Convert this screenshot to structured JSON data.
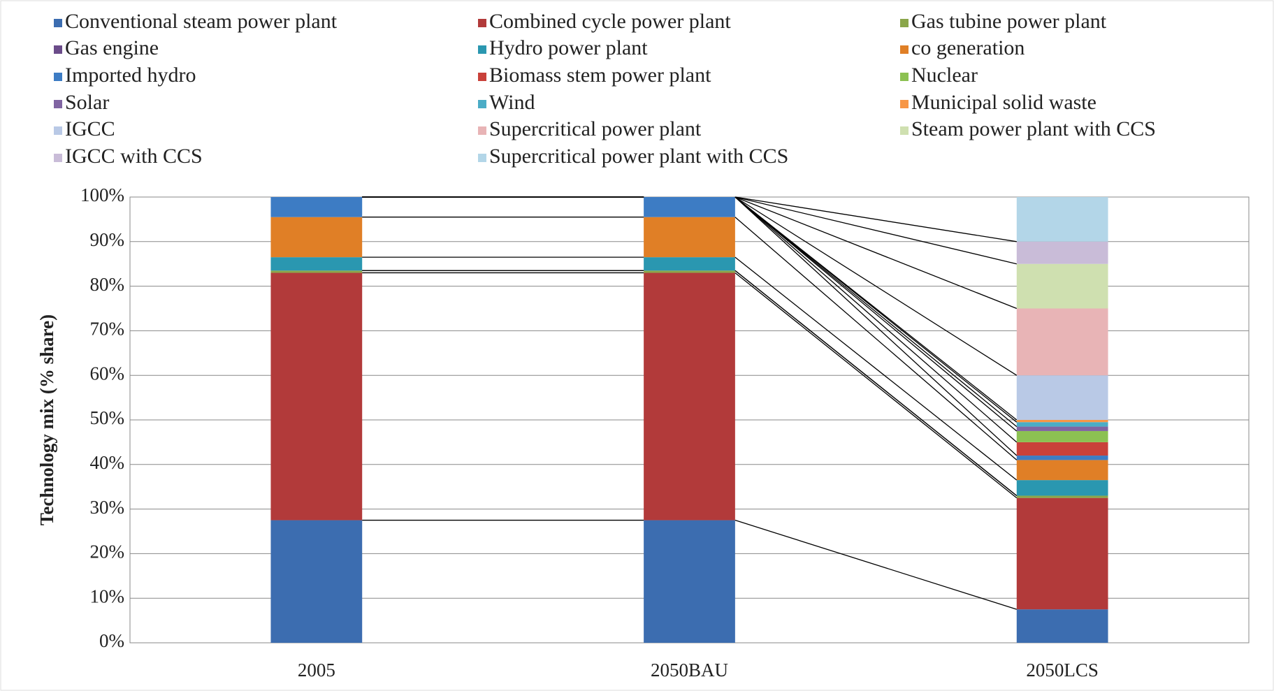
{
  "chart_data": {
    "type": "stacked_bar",
    "ylabel": "Technology mix (% share)",
    "categories": [
      "2005",
      "2050BAU",
      "2050LCS"
    ],
    "ylim": [
      0,
      100
    ],
    "yticks": [
      {
        "value": 0,
        "label": "0%"
      },
      {
        "value": 10,
        "label": "10%"
      },
      {
        "value": 20,
        "label": "20%"
      },
      {
        "value": 30,
        "label": "30%"
      },
      {
        "value": 40,
        "label": "40%"
      },
      {
        "value": 50,
        "label": "50%"
      },
      {
        "value": 60,
        "label": "60%"
      },
      {
        "value": 70,
        "label": "70%"
      },
      {
        "value": 80,
        "label": "80%"
      },
      {
        "value": 90,
        "label": "90%"
      },
      {
        "value": 100,
        "label": "100%"
      }
    ],
    "grid": true,
    "series_lines": true,
    "series": [
      {
        "name": "Conventional steam power plant",
        "color": "#3c6db0",
        "values": [
          27.5,
          27.5,
          7.5
        ]
      },
      {
        "name": "Combined cycle power plant",
        "color": "#b23a3a",
        "values": [
          55.5,
          55.5,
          25
        ]
      },
      {
        "name": "Gas tubine power plant",
        "color": "#8aa64a",
        "values": [
          0.5,
          0.5,
          0.5
        ]
      },
      {
        "name": "Gas engine",
        "color": "#6b4c8a",
        "values": [
          0,
          0,
          0
        ]
      },
      {
        "name": "Hydro power plant",
        "color": "#2a97b0",
        "values": [
          3,
          3,
          3.5
        ]
      },
      {
        "name": "co generation",
        "color": "#e07f26",
        "values": [
          9,
          9,
          4.5
        ]
      },
      {
        "name": "Imported hydro",
        "color": "#3d7cc4",
        "values": [
          4.5,
          4.5,
          1
        ]
      },
      {
        "name": "Biomass stem power plant",
        "color": "#c9413a",
        "values": [
          0,
          0,
          3
        ]
      },
      {
        "name": "Nuclear",
        "color": "#8cc152",
        "values": [
          0,
          0,
          2.5
        ]
      },
      {
        "name": "Solar",
        "color": "#8064a2",
        "values": [
          0,
          0,
          1
        ]
      },
      {
        "name": "Wind",
        "color": "#4bacc6",
        "values": [
          0,
          0,
          1
        ]
      },
      {
        "name": "Municipal solid waste",
        "color": "#f79646",
        "values": [
          0,
          0,
          0.5
        ]
      },
      {
        "name": "IGCC",
        "color": "#b9c9e6",
        "values": [
          0,
          0,
          10
        ]
      },
      {
        "name": "Supercritical power plant",
        "color": "#e8b4b6",
        "values": [
          0,
          0,
          15
        ]
      },
      {
        "name": "Steam power plant with CCS",
        "color": "#cfe0b0",
        "values": [
          0,
          0,
          10
        ]
      },
      {
        "name": "IGCC with CCS",
        "color": "#c9bcd8",
        "values": [
          0,
          0,
          5
        ]
      },
      {
        "name": "Supercritical power plant with CCS",
        "color": "#b3d6e8",
        "values": [
          0,
          0,
          10
        ]
      }
    ]
  }
}
